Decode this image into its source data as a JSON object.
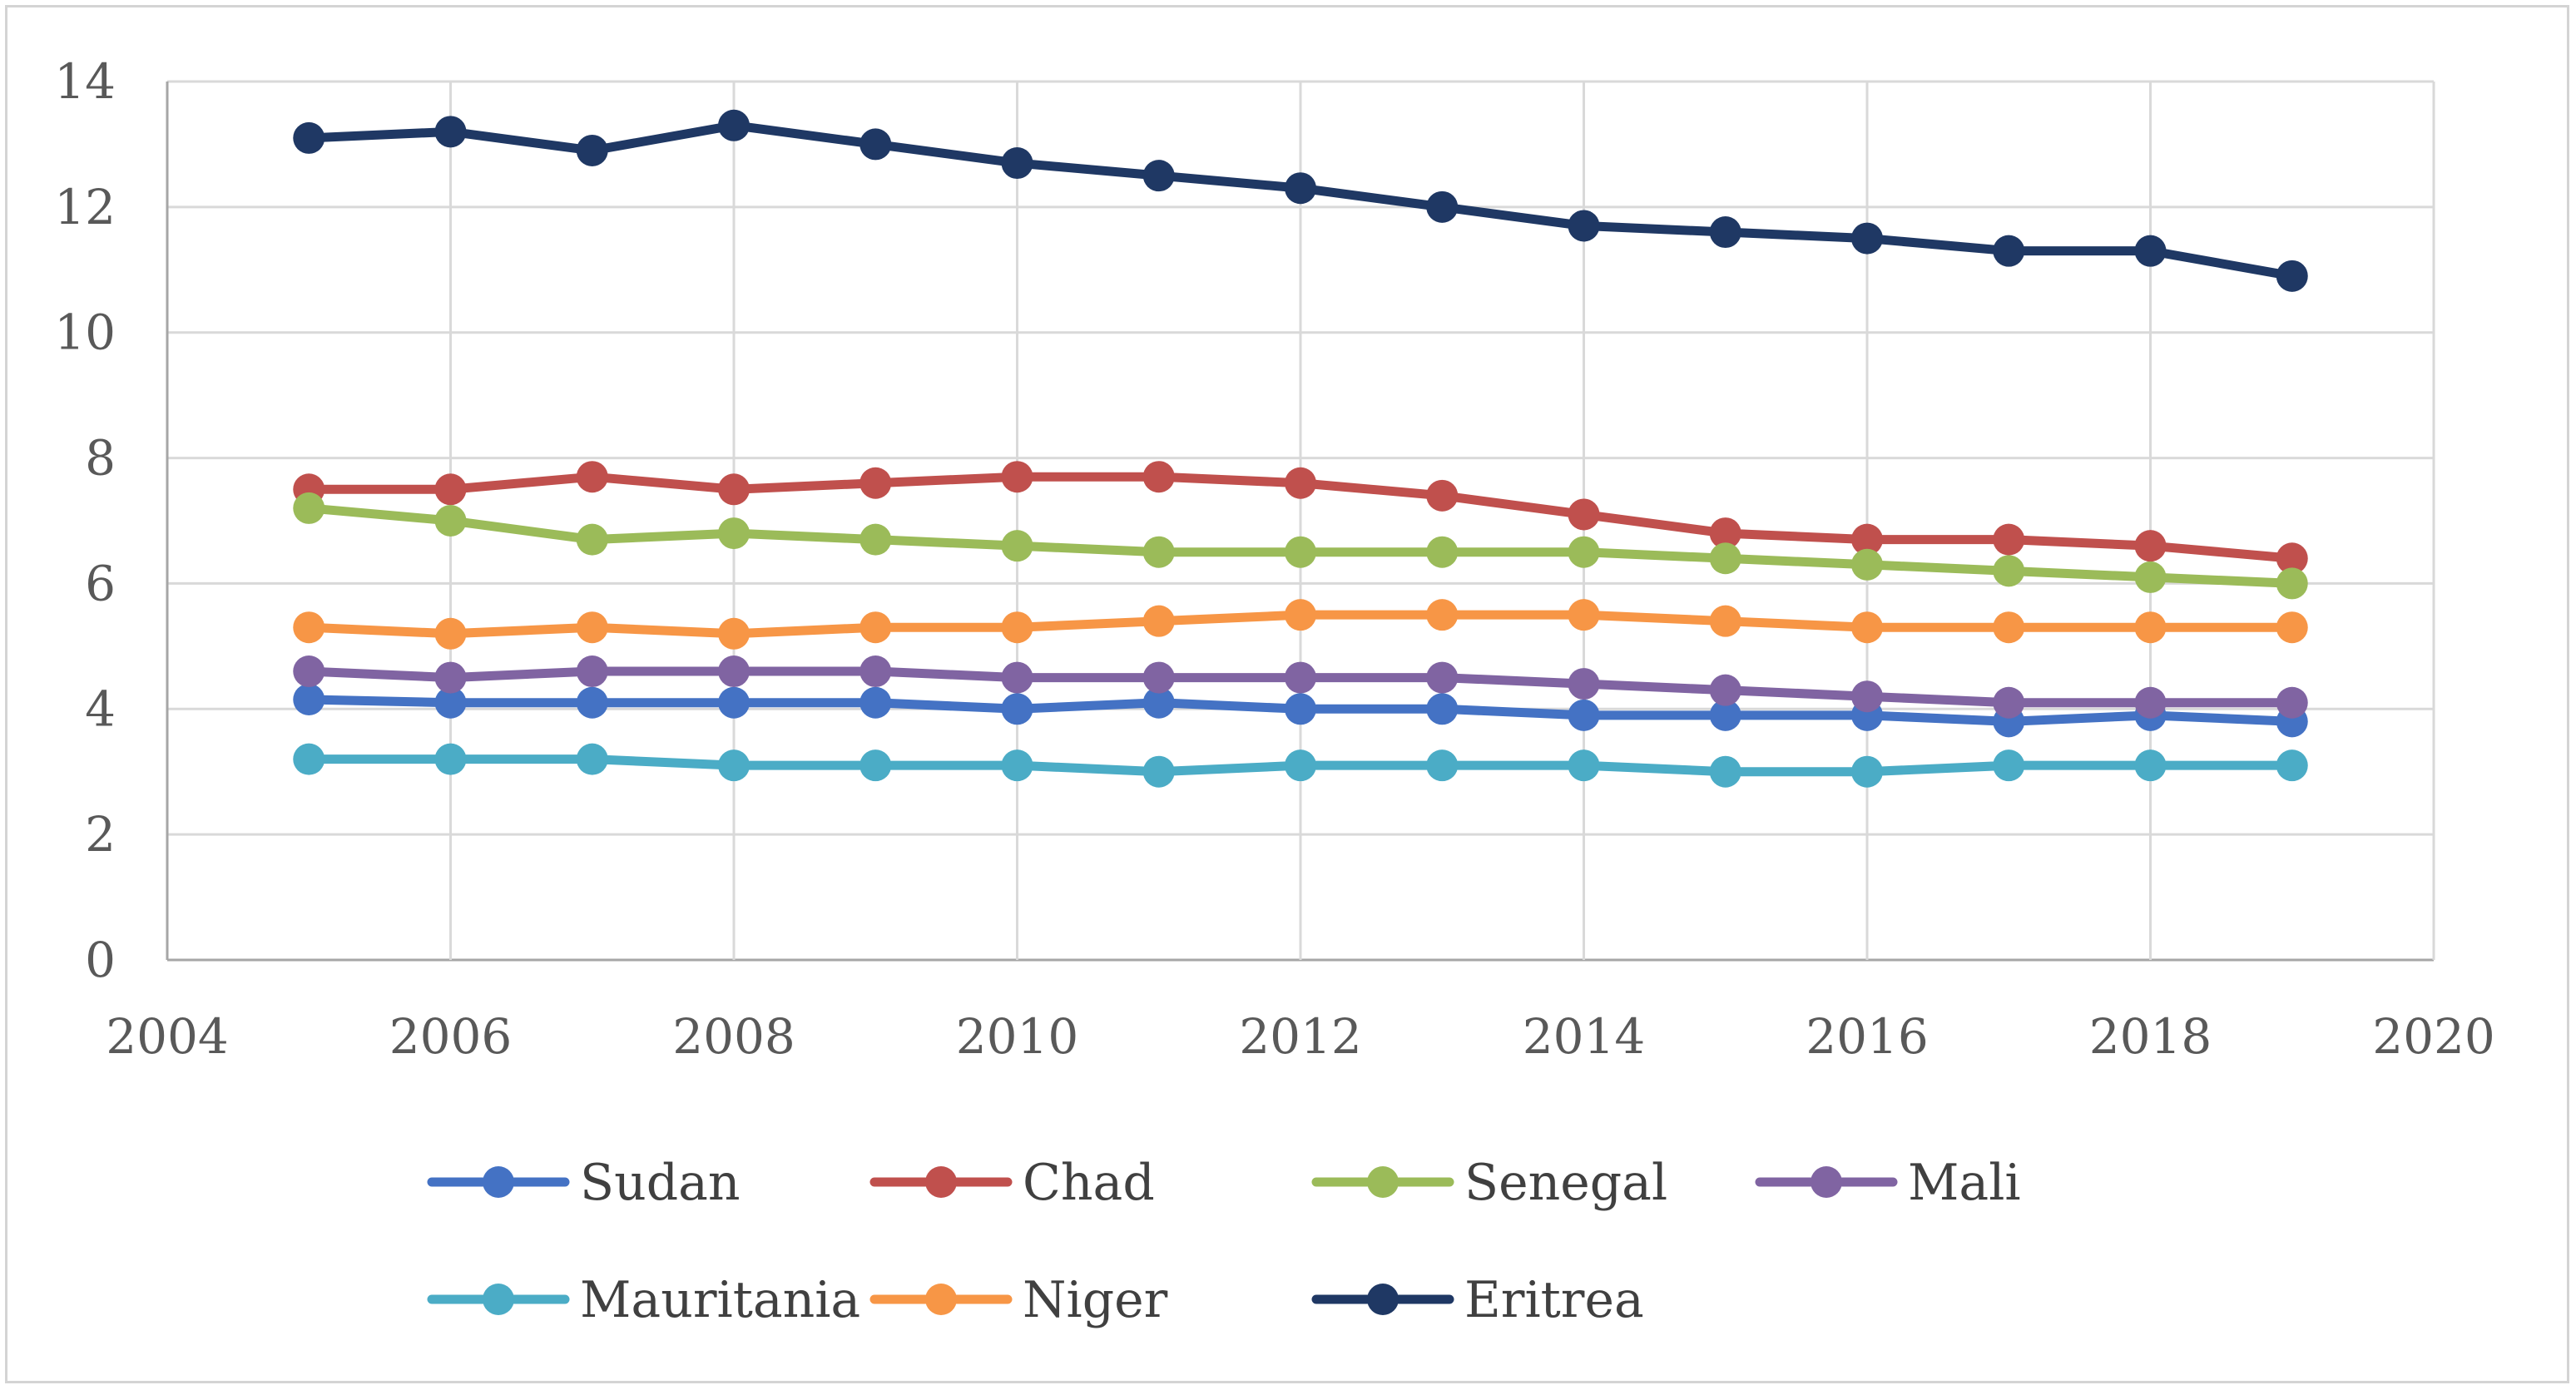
{
  "chart_data": {
    "type": "line",
    "title": "",
    "xlabel": "",
    "ylabel": "",
    "xlim": [
      2004,
      2020
    ],
    "ylim": [
      0,
      14
    ],
    "xticks": [
      2004,
      2006,
      2008,
      2010,
      2012,
      2014,
      2016,
      2018,
      2020
    ],
    "yticks": [
      0,
      2,
      4,
      6,
      8,
      10,
      12,
      14
    ],
    "xtick_labels": [
      "2004",
      "2006",
      "2008",
      "2010",
      "2012",
      "2014",
      "2016",
      "2018",
      "2020"
    ],
    "ytick_labels": [
      "0",
      "2",
      "4",
      "6",
      "8",
      "10",
      "12",
      "14"
    ],
    "grid": true,
    "legend_position": "bottom",
    "x": [
      2005,
      2006,
      2007,
      2008,
      2009,
      2010,
      2011,
      2012,
      2013,
      2014,
      2015,
      2016,
      2017,
      2018,
      2019
    ],
    "series": [
      {
        "name": "Sudan",
        "color": "#4472c4",
        "values": [
          4.15,
          4.1,
          4.1,
          4.1,
          4.1,
          4.0,
          4.1,
          4.0,
          4.0,
          3.9,
          3.9,
          3.9,
          3.8,
          3.9,
          3.8
        ]
      },
      {
        "name": "Chad",
        "color": "#c0504d",
        "values": [
          7.5,
          7.5,
          7.7,
          7.5,
          7.6,
          7.7,
          7.7,
          7.6,
          7.4,
          7.1,
          6.8,
          6.7,
          6.7,
          6.6,
          6.4
        ]
      },
      {
        "name": "Senegal",
        "color": "#9bbb59",
        "values": [
          7.2,
          7.0,
          6.7,
          6.8,
          6.7,
          6.6,
          6.5,
          6.5,
          6.5,
          6.5,
          6.4,
          6.3,
          6.2,
          6.1,
          6.0
        ]
      },
      {
        "name": "Mali",
        "color": "#8064a2",
        "values": [
          4.6,
          4.5,
          4.6,
          4.6,
          4.6,
          4.5,
          4.5,
          4.5,
          4.5,
          4.4,
          4.3,
          4.2,
          4.1,
          4.1,
          4.1
        ]
      },
      {
        "name": "Mauritania",
        "color": "#4bacc6",
        "values": [
          3.2,
          3.2,
          3.2,
          3.1,
          3.1,
          3.1,
          3.0,
          3.1,
          3.1,
          3.1,
          3.0,
          3.0,
          3.1,
          3.1,
          3.1
        ]
      },
      {
        "name": "Niger",
        "color": "#f79646",
        "values": [
          5.3,
          5.2,
          5.3,
          5.2,
          5.3,
          5.3,
          5.4,
          5.5,
          5.5,
          5.5,
          5.4,
          5.3,
          5.3,
          5.3,
          5.3
        ]
      },
      {
        "name": "Eritrea",
        "color": "#1f3864",
        "values": [
          13.1,
          13.2,
          12.9,
          13.3,
          13.0,
          12.7,
          12.5,
          12.3,
          12.0,
          11.7,
          11.6,
          11.5,
          11.3,
          11.3,
          10.9
        ]
      }
    ]
  }
}
